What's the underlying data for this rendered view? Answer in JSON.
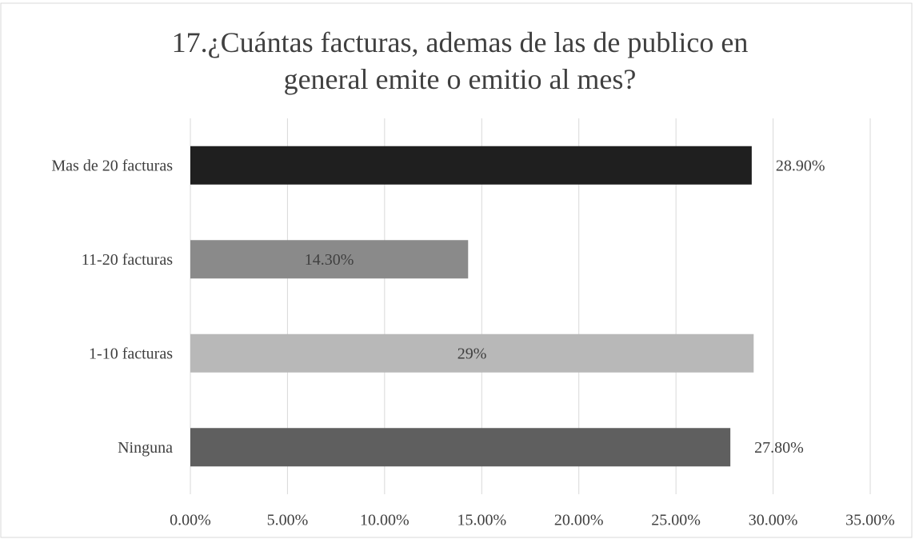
{
  "chart_data": {
    "type": "hbar",
    "title": "17.¿Cuántas facturas, ademas de las de publico en general emite o emitio al mes?",
    "categories": [
      "Mas de 20 facturas",
      "11-20 facturas",
      "1-10 facturas",
      "Ninguna"
    ],
    "values": [
      28.9,
      14.3,
      29,
      27.8
    ],
    "value_labels": [
      "28.90%",
      "14.30%",
      "29%",
      "27.80%"
    ],
    "label_positions": [
      "outside",
      "center",
      "center",
      "outside"
    ],
    "colors": [
      "#1f1f1f",
      "#8a8a8a",
      "#b8b8b8",
      "#5f5f5f"
    ],
    "xlim": [
      0,
      35
    ],
    "xticks": [
      {
        "value": 0,
        "label": "0.00%"
      },
      {
        "value": 5,
        "label": "5.00%"
      },
      {
        "value": 10,
        "label": "10.00%"
      },
      {
        "value": 15,
        "label": "15.00%"
      },
      {
        "value": 20,
        "label": "20.00%"
      },
      {
        "value": 25,
        "label": "25.00%"
      },
      {
        "value": 30,
        "label": "30.00%"
      },
      {
        "value": 35,
        "label": "35.00%"
      }
    ],
    "grid": true
  }
}
